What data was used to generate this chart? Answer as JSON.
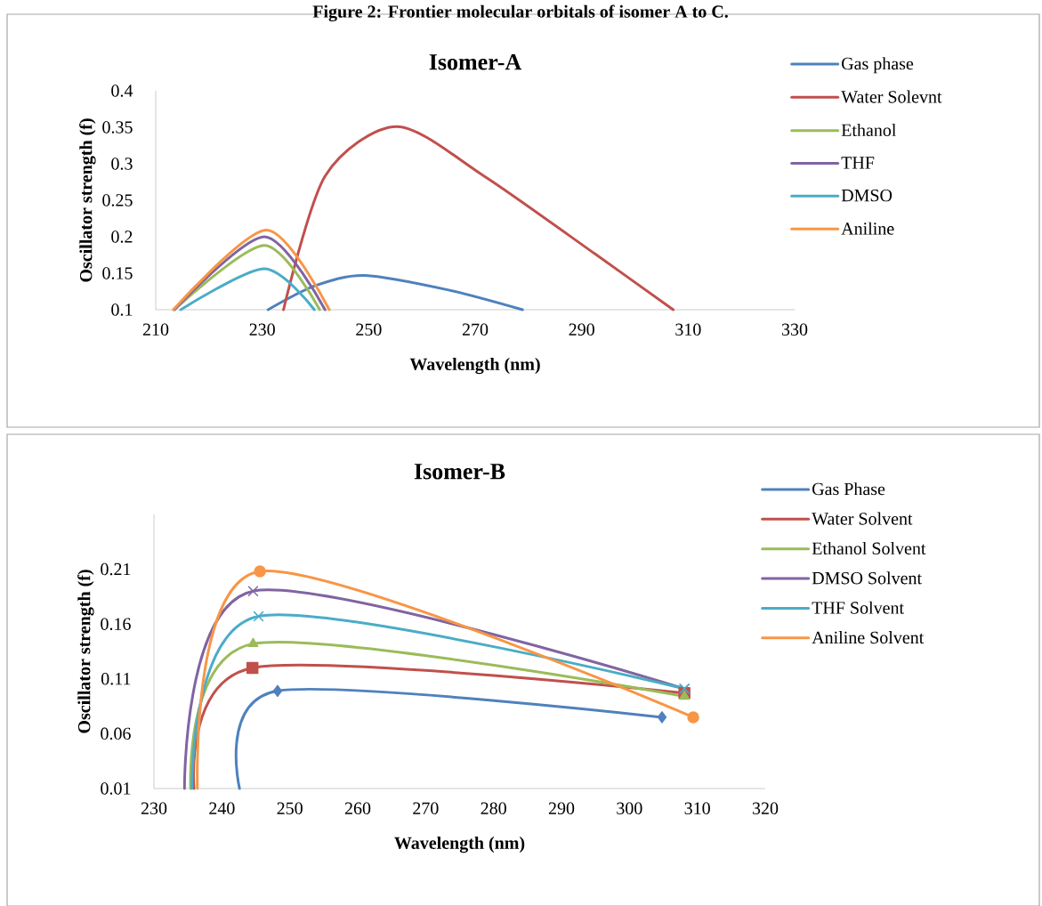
{
  "chart_data": [
    {
      "type": "line",
      "title": "Isomer-A",
      "xlabel": "Wavelength (nm)",
      "ylabel": "Oscillator strength (f)",
      "annotations": [
        "Figure 2: Frontier molecular orbitals of isomer A to C."
      ],
      "xlim": [
        210,
        330
      ],
      "ylim": [
        0.1,
        0.4
      ],
      "xticks": [
        210,
        230,
        250,
        270,
        290,
        310,
        330
      ],
      "yticks": [
        0.1,
        0.15,
        0.2,
        0.25,
        0.3,
        0.35,
        0.4
      ],
      "legend": "right",
      "marker": "none",
      "series": [
        {
          "name": "Gas phase",
          "color": "#4f81bd",
          "x": [
            231.1,
            240,
            249.3,
            265,
            278.9
          ],
          "values": [
            0.1,
            0.133,
            0.147,
            0.127,
            0.1
          ]
        },
        {
          "name": "Water Solevnt",
          "color": "#c0504d",
          "x": [
            234.0,
            241.8,
            255.3,
            271.7,
            292.4,
            307.2
          ],
          "values": [
            0.1,
            0.283,
            0.351,
            0.283,
            0.177,
            0.1
          ]
        },
        {
          "name": "Ethanol",
          "color": "#9bbb59",
          "x": [
            213.5,
            230.4,
            240.8
          ],
          "values": [
            0.1,
            0.188,
            0.1
          ]
        },
        {
          "name": "THF",
          "color": "#8064a2",
          "x": [
            213.5,
            230.4,
            241.8
          ],
          "values": [
            0.1,
            0.2,
            0.1
          ]
        },
        {
          "name": "DMSO",
          "color": "#4bacc6",
          "x": [
            214.7,
            230.4,
            239.8
          ],
          "values": [
            0.1,
            0.156,
            0.1
          ]
        },
        {
          "name": "Aniline",
          "color": "#f79646",
          "x": [
            213.3,
            230.8,
            242.6
          ],
          "values": [
            0.1,
            0.209,
            0.1
          ]
        }
      ]
    },
    {
      "type": "line",
      "title": "Isomer-B",
      "xlabel": "Wavelength (nm)",
      "ylabel": "Oscillator strength (f)",
      "xlim": [
        230,
        320
      ],
      "ylim": [
        0.01,
        0.26
      ],
      "xticks": [
        230,
        240,
        250,
        260,
        270,
        280,
        290,
        300,
        310,
        320
      ],
      "yticks": [
        0.01,
        0.06,
        0.11,
        0.16,
        0.21
      ],
      "legend": "right",
      "series": [
        {
          "name": "Gas Phase",
          "color": "#4f81bd",
          "marker": "diamond",
          "x": [
            242.6,
            248.2,
            304.8
          ],
          "values": [
            0.01,
            0.099,
            0.075
          ]
        },
        {
          "name": "Water Solvent",
          "color": "#c0504d",
          "marker": "square",
          "x": [
            235.9,
            244.5,
            308.1
          ],
          "values": [
            0.01,
            0.12,
            0.097
          ]
        },
        {
          "name": "Ethanol Solvent",
          "color": "#9bbb59",
          "marker": "triangle",
          "x": [
            235.4,
            244.6,
            308.1
          ],
          "values": [
            0.01,
            0.142,
            0.094
          ]
        },
        {
          "name": "DMSO Solvent",
          "color": "#8064a2",
          "marker": "cross",
          "x": [
            234.5,
            244.6,
            308.1
          ],
          "values": [
            0.01,
            0.19,
            0.101
          ]
        },
        {
          "name": "THF Solvent",
          "color": "#4bacc6",
          "marker": "cross",
          "x": [
            235.6,
            245.4,
            308.1
          ],
          "values": [
            0.01,
            0.167,
            0.101
          ]
        },
        {
          "name": "Aniline Solvent",
          "color": "#f79646",
          "marker": "circle",
          "x": [
            236.4,
            245.6,
            309.4
          ],
          "values": [
            0.01,
            0.208,
            0.075
          ]
        }
      ]
    }
  ]
}
